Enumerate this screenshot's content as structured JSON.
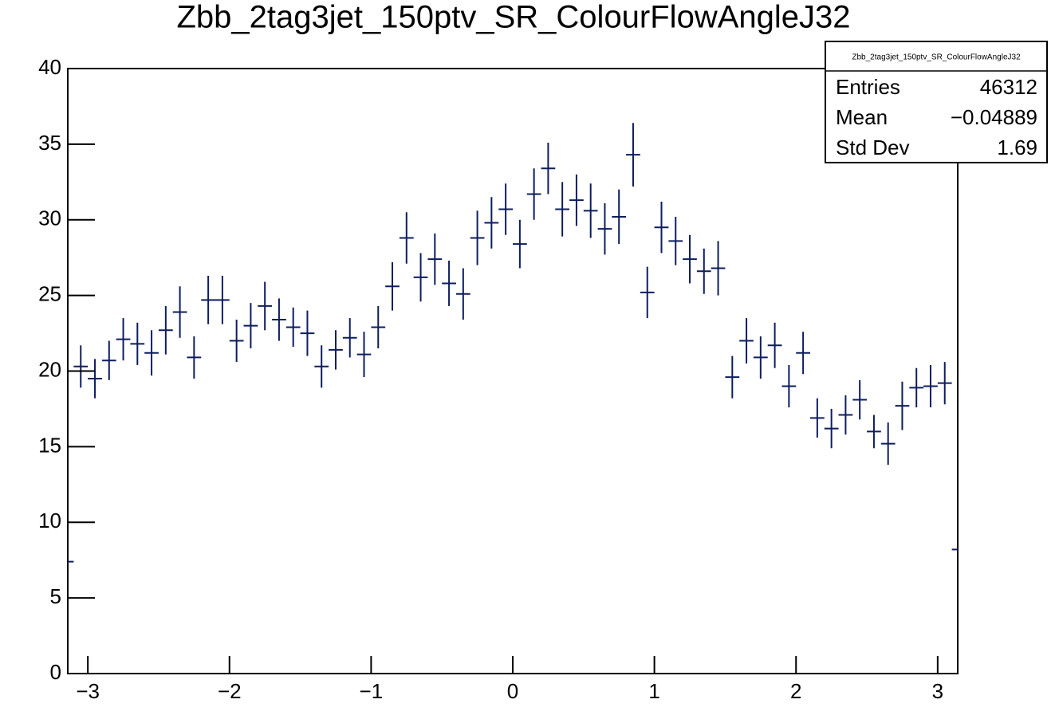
{
  "chart_data": {
    "type": "histogram",
    "title": "Zbb_2tag3jet_150ptv_SR_ColourFlowAngleJ32",
    "color": "#0d1d5e",
    "bins": [
      -3.2,
      -3.1,
      -3.0,
      -2.9,
      -2.8,
      -2.7,
      -2.6,
      -2.5,
      -2.4,
      -2.3,
      -2.2,
      -2.1,
      -2.0,
      -1.9,
      -1.8,
      -1.7,
      -1.6,
      -1.5,
      -1.4,
      -1.3,
      -1.2,
      -1.1,
      -1.0,
      -0.9,
      -0.8,
      -0.7,
      -0.6,
      -0.5,
      -0.4,
      -0.3,
      -0.2,
      -0.1,
      0.0,
      0.1,
      0.2,
      0.3,
      0.4,
      0.5,
      0.6,
      0.7,
      0.8,
      0.9,
      1.0,
      1.1,
      1.2,
      1.3,
      1.4,
      1.5,
      1.6,
      1.7,
      1.8,
      1.9,
      2.0,
      2.1,
      2.2,
      2.3,
      2.4,
      2.5,
      2.6,
      2.7,
      2.8,
      2.9,
      3.0,
      3.1,
      3.2
    ],
    "values": [
      7.4,
      20.3,
      19.5,
      20.7,
      22.1,
      21.8,
      21.2,
      22.7,
      23.9,
      20.9,
      24.7,
      24.7,
      22.0,
      23.0,
      24.3,
      23.4,
      22.9,
      22.5,
      20.3,
      21.4,
      22.2,
      21.1,
      22.9,
      25.6,
      28.8,
      26.2,
      27.4,
      25.8,
      25.1,
      28.8,
      29.8,
      30.7,
      28.4,
      31.7,
      33.4,
      30.7,
      31.3,
      30.6,
      29.4,
      30.2,
      34.3,
      25.2,
      29.5,
      28.6,
      27.4,
      26.6,
      26.8,
      19.6,
      22.0,
      20.9,
      21.7,
      19.0,
      21.2,
      16.9,
      16.2,
      17.1,
      18.1,
      16.0,
      15.2,
      17.7,
      18.9,
      19.0,
      19.2,
      8.2
    ],
    "errors": [
      0.8,
      1.4,
      1.3,
      1.3,
      1.4,
      1.4,
      1.5,
      1.6,
      1.7,
      1.4,
      1.6,
      1.6,
      1.4,
      1.5,
      1.6,
      1.4,
      1.3,
      1.5,
      1.4,
      1.3,
      1.3,
      1.5,
      1.4,
      1.6,
      1.7,
      1.6,
      1.7,
      1.5,
      1.7,
      1.8,
      1.7,
      1.7,
      1.6,
      1.7,
      1.7,
      1.8,
      1.7,
      1.8,
      1.7,
      1.8,
      2.1,
      1.7,
      1.7,
      1.6,
      1.6,
      1.5,
      1.8,
      1.4,
      1.5,
      1.4,
      1.5,
      1.4,
      1.4,
      1.3,
      1.3,
      1.3,
      1.3,
      1.1,
      1.4,
      1.6,
      1.3,
      1.4,
      1.4,
      0.8
    ],
    "xlim": [
      -3.1416,
      3.1416
    ],
    "ylim": [
      0,
      40
    ],
    "xticks": [
      {
        "value": -3,
        "label": "−3"
      },
      {
        "value": -2,
        "label": "−2"
      },
      {
        "value": -1,
        "label": "−1"
      },
      0,
      1,
      2,
      3
    ],
    "yticks": [
      0,
      5,
      10,
      15,
      20,
      25,
      30,
      35,
      40
    ],
    "stats": {
      "title": "Zbb_2tag3jet_150ptv_SR_ColourFlowAngleJ32",
      "rows": [
        [
          "Entries",
          "46312"
        ],
        [
          "Mean",
          "−0.04889"
        ],
        [
          "Std Dev",
          "1.69"
        ]
      ]
    }
  }
}
